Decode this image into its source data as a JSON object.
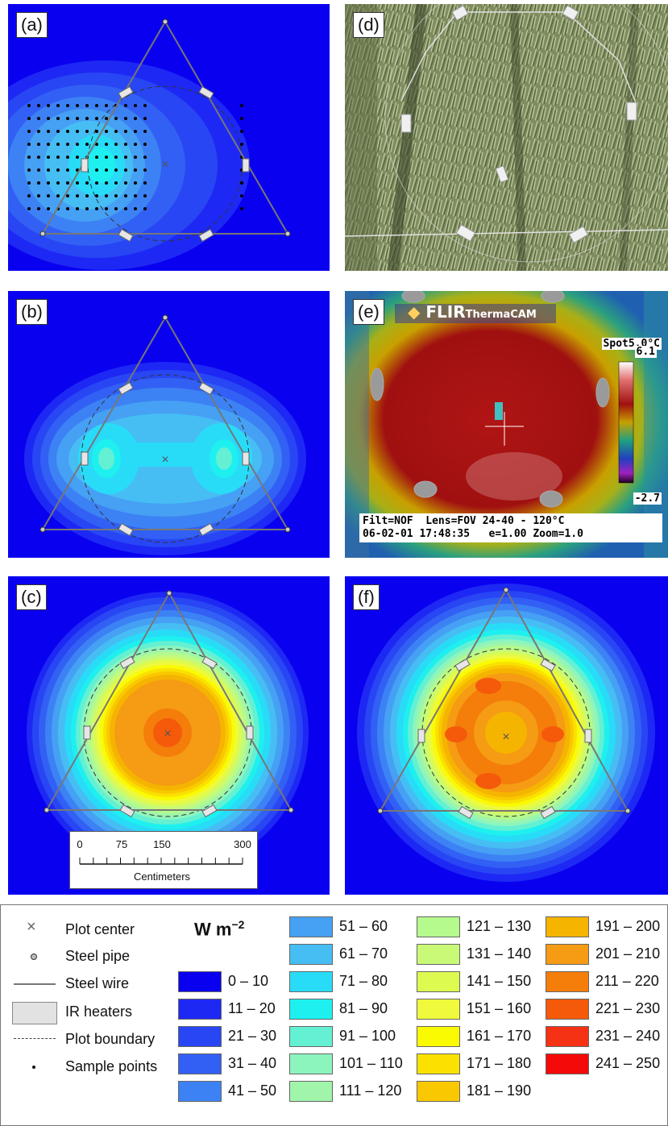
{
  "panels": {
    "a": {
      "label": "(a)"
    },
    "b": {
      "label": "(b)"
    },
    "c": {
      "label": "(c)"
    },
    "d": {
      "label": "(d)"
    },
    "e": {
      "label": "(e)"
    },
    "f": {
      "label": "(f)"
    }
  },
  "scale_bar": {
    "ticks": [
      "0",
      "75",
      "150",
      "300"
    ],
    "unit": "Centimeters"
  },
  "flir": {
    "brand": "FLIR",
    "brand_sub": "ThermaCAM",
    "spot": "Spot5.0°C",
    "scale_max": "6.1",
    "scale_min": "-2.7",
    "line1": "Filt=NOF  Lens=FOV 24-40 - 120°C",
    "line2": "06-02-01 17:48:35   e=1.00 Zoom=1.0"
  },
  "legend": {
    "symbols": [
      {
        "name": "plot-center",
        "label": "Plot center"
      },
      {
        "name": "steel-pipe",
        "label": "Steel pipe"
      },
      {
        "name": "steel-wire",
        "label": "Steel wire"
      },
      {
        "name": "ir-heaters",
        "label": "IR heaters"
      },
      {
        "name": "plot-boundary",
        "label": "Plot boundary"
      },
      {
        "name": "sample-points",
        "label": "Sample points"
      }
    ],
    "unit_main": "W m",
    "unit_exp": "−2",
    "bins": [
      {
        "label": "0 – 10",
        "color": "#0a00f0"
      },
      {
        "label": "11 – 20",
        "color": "#1e28f4"
      },
      {
        "label": "21 – 30",
        "color": "#2846f4"
      },
      {
        "label": "31 – 40",
        "color": "#3260f4"
      },
      {
        "label": "41 – 50",
        "color": "#3c82f4"
      },
      {
        "label": "51 – 60",
        "color": "#46a0f4"
      },
      {
        "label": "61 – 70",
        "color": "#46bef4"
      },
      {
        "label": "71 – 80",
        "color": "#28dcf8"
      },
      {
        "label": "81 – 90",
        "color": "#1ef0f0"
      },
      {
        "label": "91 – 100",
        "color": "#64f0d2"
      },
      {
        "label": "101 – 110",
        "color": "#8cf5be"
      },
      {
        "label": "111 – 120",
        "color": "#a0f5aa"
      },
      {
        "label": "121 – 130",
        "color": "#b4fa8c"
      },
      {
        "label": "131 – 140",
        "color": "#c8fa78"
      },
      {
        "label": "141 – 150",
        "color": "#dcfa50"
      },
      {
        "label": "151 – 160",
        "color": "#f0fa3c"
      },
      {
        "label": "161 – 170",
        "color": "#fafa00"
      },
      {
        "label": "171 – 180",
        "color": "#fae100"
      },
      {
        "label": "181 – 190",
        "color": "#fac800"
      },
      {
        "label": "191 – 200",
        "color": "#f5b400"
      },
      {
        "label": "201 – 210",
        "color": "#f59b14"
      },
      {
        "label": "211 – 220",
        "color": "#f57d0a"
      },
      {
        "label": "221 – 230",
        "color": "#f55a0a"
      },
      {
        "label": "231 – 240",
        "color": "#f53214"
      },
      {
        "label": "241 – 250",
        "color": "#f50a0a"
      }
    ]
  }
}
